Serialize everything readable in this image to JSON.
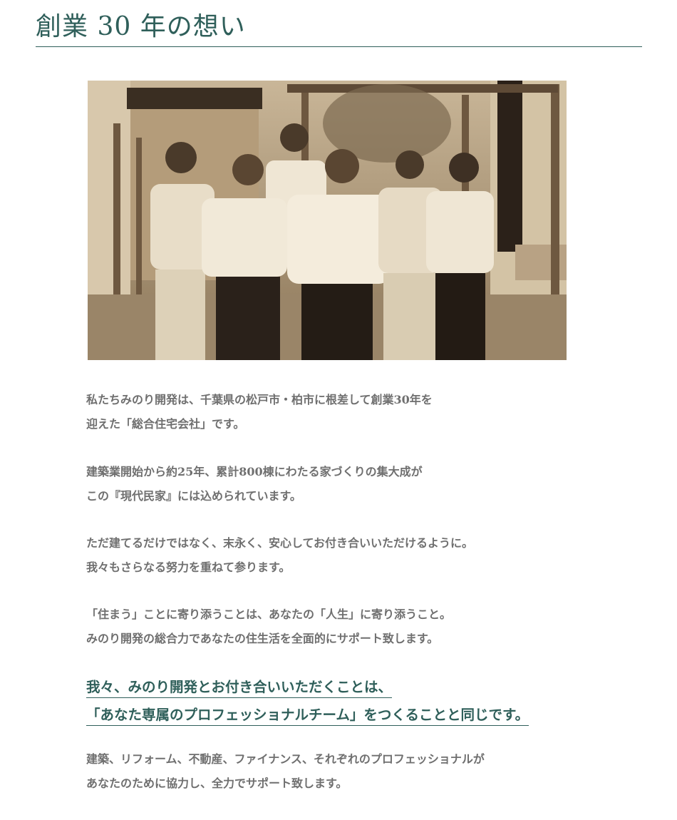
{
  "heading": {
    "title": "創業 30 年の想い"
  },
  "photo": {
    "alt": "スタッフ集合写真"
  },
  "paragraphs": [
    {
      "lines": [
        "私たちみのり開発は、千葉県の松戸市・柏市に根差して創業30年を",
        "迎えた「総合住宅会社」です。"
      ]
    },
    {
      "lines": [
        "建築業開始から約25年、累計800棟にわたる家づくりの集大成が",
        "この『現代民家』には込められています。"
      ]
    },
    {
      "lines": [
        "ただ建てるだけではなく、末永く、安心してお付き合いいただけるように。",
        "我々もさらなる努力を重ねて参ります。"
      ]
    },
    {
      "lines": [
        "「住まう」ことに寄り添うことは、あなたの「人生」に寄り添うこと。",
        "みのり開発の総合力であなたの住生活を全面的にサポート致します。"
      ]
    }
  ],
  "highlight": {
    "lines": [
      "我々、みのり開発とお付き合いいただくことは、",
      "「あなた専属のプロフェッショナルチーム」をつくることと同じです。"
    ]
  },
  "closing": {
    "lines": [
      "建築、リフォーム、不動産、ファイナンス、それぞれのプロフェッショナルが",
      "あなたのために協力し、全力でサポート致します。"
    ]
  }
}
